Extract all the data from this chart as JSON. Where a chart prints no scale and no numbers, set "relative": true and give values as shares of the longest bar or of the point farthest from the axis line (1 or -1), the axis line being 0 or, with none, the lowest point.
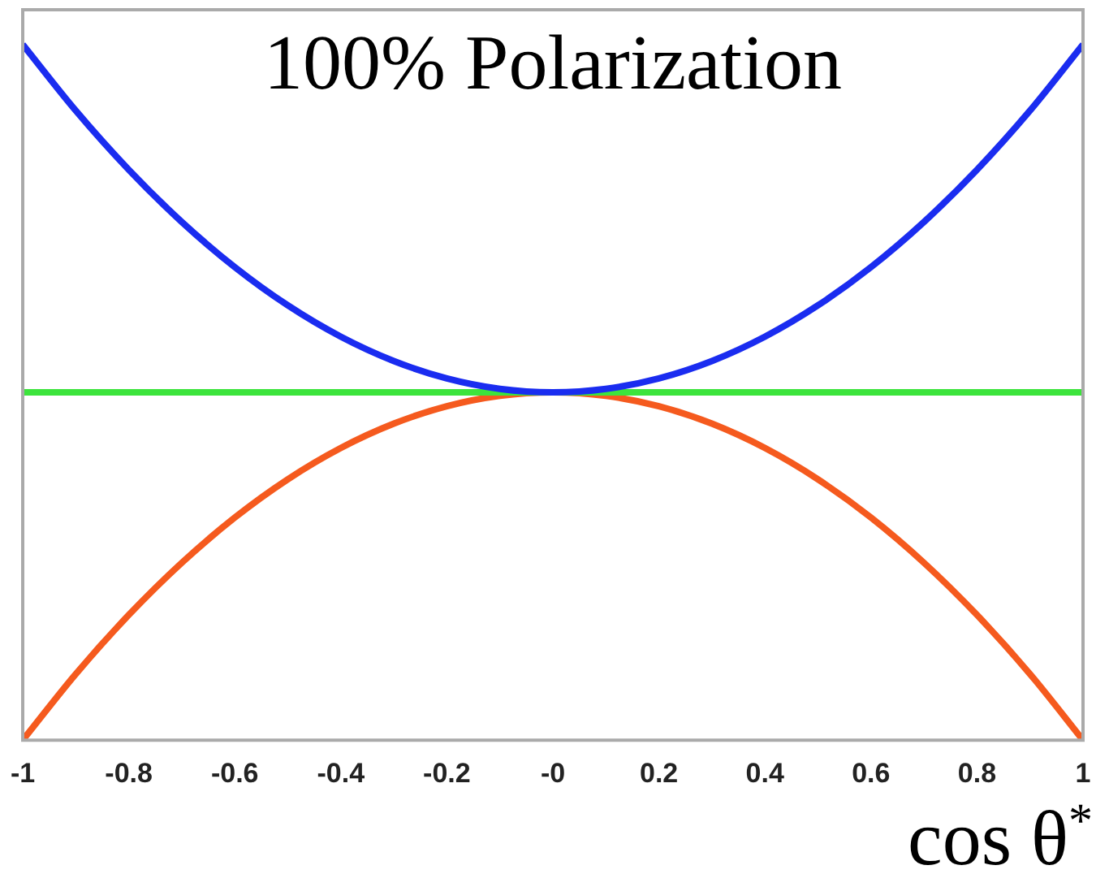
{
  "chart_data": {
    "type": "line",
    "relative": true,
    "xlabel": "cos θ$^{*}$",
    "annotations": [
      "100% Polarization"
    ],
    "x": [
      -1,
      -0.9,
      -0.8,
      -0.7,
      -0.6,
      -0.5,
      -0.4,
      -0.3,
      -0.2,
      -0.1,
      0,
      0.1,
      0.2,
      0.3,
      0.4,
      0.5,
      0.6,
      0.7,
      0.8,
      0.9,
      1
    ],
    "xlim": [
      -1,
      1
    ],
    "xticks": [
      -1,
      -0.8,
      -0.6,
      -0.4,
      -0.2,
      {
        "value": 0,
        "label": "-0"
      },
      0.2,
      0.4,
      0.6,
      0.8,
      1
    ],
    "series": [
      {
        "color": "#1a2cf0",
        "values": [
          1,
          0.905,
          0.82,
          0.745,
          0.68,
          0.625,
          0.58,
          0.545,
          0.52,
          0.505,
          0.5,
          0.505,
          0.52,
          0.545,
          0.58,
          0.625,
          0.68,
          0.745,
          0.82,
          0.905,
          1
        ]
      },
      {
        "color": "#3ce43c",
        "values": [
          0.5,
          0.5,
          0.5,
          0.5,
          0.5,
          0.5,
          0.5,
          0.5,
          0.5,
          0.5,
          0.5,
          0.5,
          0.5,
          0.5,
          0.5,
          0.5,
          0.5,
          0.5,
          0.5,
          0.5,
          0.5
        ]
      },
      {
        "color": "#f55a1e",
        "values": [
          0,
          0.095,
          0.18,
          0.255,
          0.32,
          0.375,
          0.42,
          0.455,
          0.48,
          0.495,
          0.5,
          0.495,
          0.48,
          0.455,
          0.42,
          0.375,
          0.32,
          0.255,
          0.18,
          0.095,
          0
        ]
      }
    ],
    "grid": false,
    "legend": false,
    "marker": "none",
    "line_style": "solid"
  }
}
